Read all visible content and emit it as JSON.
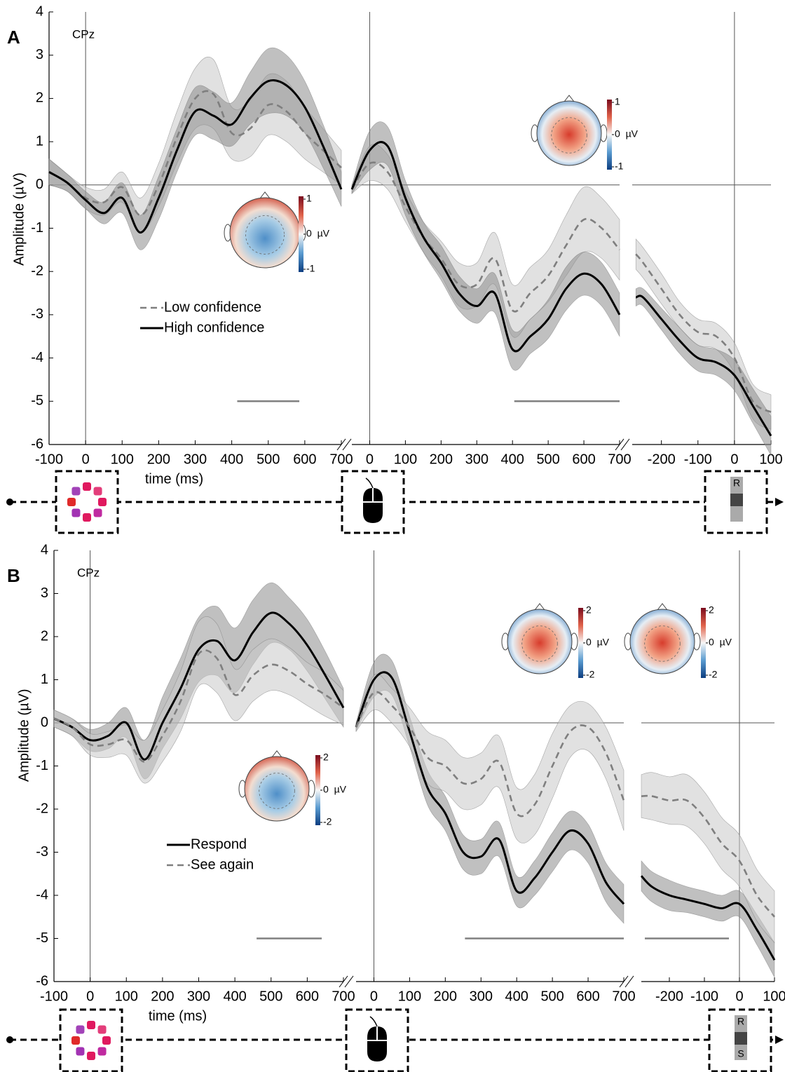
{
  "chart_data": [
    {
      "type": "line",
      "panel_label": "A",
      "channel": "CPz",
      "ylabel": "Amplitude (µV)",
      "xlabel": "time (ms)",
      "x": [
        -100,
        -50,
        0,
        50,
        100,
        150,
        200,
        250,
        300,
        350,
        400,
        450,
        500,
        550,
        600,
        650,
        700
      ],
      "xlim": [
        -100,
        700
      ],
      "xticks": [
        -100,
        0,
        100,
        200,
        300,
        400,
        500,
        600,
        700
      ],
      "ylim": [
        -6,
        4
      ],
      "yticks": [
        -6,
        -5,
        -4,
        -3,
        -2,
        -1,
        0,
        1,
        2,
        3,
        4
      ],
      "series": [
        {
          "name": "Low confidence",
          "color": "#7f7f7f",
          "band_color": "#c8c8c8",
          "dashed": true,
          "values": [
            0.3,
            0.05,
            -0.3,
            -0.4,
            -0.05,
            -0.7,
            0.0,
            1.1,
            2.0,
            2.1,
            1.2,
            1.3,
            1.85,
            1.7,
            1.2,
            0.8,
            0.4
          ],
          "ci": [
            0.3,
            0.2,
            0.25,
            0.3,
            0.35,
            0.4,
            0.5,
            0.6,
            0.7,
            0.8,
            0.6,
            0.65,
            0.7,
            0.7,
            0.6,
            0.5,
            0.4
          ]
        },
        {
          "name": "High confidence",
          "color": "#000000",
          "band_color": "#8c8c8c",
          "dashed": false,
          "values": [
            0.3,
            0.05,
            -0.35,
            -0.65,
            -0.3,
            -1.1,
            -0.3,
            0.8,
            1.7,
            1.6,
            1.4,
            2.0,
            2.4,
            2.3,
            1.8,
            0.9,
            -0.1
          ],
          "ci": [
            0.3,
            0.2,
            0.2,
            0.25,
            0.35,
            0.4,
            0.5,
            0.5,
            0.55,
            0.55,
            0.5,
            0.6,
            0.75,
            0.7,
            0.6,
            0.5,
            0.4
          ]
        }
      ],
      "significance": {
        "y": -5,
        "ranges": [
          [
            415,
            585
          ]
        ]
      },
      "topomaps": [
        {
          "colorbar_ticks": [
            1,
            {
              "value": 0,
              "label": "0  µV"
            },
            -1
          ]
        }
      ]
    },
    {
      "type": "line",
      "x": [
        -50,
        0,
        50,
        100,
        150,
        200,
        250,
        300,
        350,
        400,
        450,
        500,
        550,
        600,
        650,
        700
      ],
      "xlim": [
        -50,
        700
      ],
      "xticks": [
        0,
        100,
        200,
        300,
        400,
        500,
        600,
        700
      ],
      "ylim": [
        -6,
        4
      ],
      "series": [
        {
          "color": "#7f7f7f",
          "band_color": "#c8c8c8",
          "dashed": true,
          "values": [
            -0.1,
            0.5,
            0.3,
            -0.5,
            -1.2,
            -1.7,
            -2.3,
            -2.3,
            -1.7,
            -2.9,
            -2.5,
            -2.1,
            -1.4,
            -0.8,
            -1.0,
            -1.5
          ],
          "ci": [
            0.1,
            0.4,
            0.4,
            0.35,
            0.35,
            0.4,
            0.5,
            0.5,
            0.6,
            0.6,
            0.6,
            0.6,
            0.7,
            0.75,
            0.7,
            0.7
          ]
        },
        {
          "color": "#000000",
          "band_color": "#8c8c8c",
          "dashed": false,
          "values": [
            -0.1,
            0.8,
            0.9,
            -0.3,
            -1.2,
            -1.8,
            -2.5,
            -2.8,
            -2.5,
            -3.8,
            -3.5,
            -3.1,
            -2.4,
            -2.05,
            -2.3,
            -3.0
          ],
          "ci": [
            0.1,
            0.45,
            0.45,
            0.4,
            0.35,
            0.4,
            0.4,
            0.4,
            0.45,
            0.45,
            0.4,
            0.45,
            0.5,
            0.5,
            0.5,
            0.5
          ]
        }
      ],
      "significance": {
        "y": -5,
        "ranges": [
          [
            405,
            700
          ]
        ]
      },
      "topomaps": [
        {
          "colorbar_ticks": [
            1,
            {
              "value": 0,
              "label": "0  µV"
            },
            -1
          ]
        }
      ]
    },
    {
      "type": "line",
      "x": [
        -270,
        -250,
        -200,
        -150,
        -100,
        -50,
        0,
        50,
        100
      ],
      "xlim": [
        -280,
        100
      ],
      "xticks": [
        -200,
        -100,
        0,
        100
      ],
      "ylim": [
        -6,
        4
      ],
      "series": [
        {
          "color": "#7f7f7f",
          "band_color": "#c8c8c8",
          "dashed": true,
          "values": [
            -1.6,
            -1.8,
            -2.4,
            -3.0,
            -3.4,
            -3.5,
            -4.0,
            -5.0,
            -5.25
          ],
          "ci": [
            0.35,
            0.35,
            0.35,
            0.3,
            0.3,
            0.3,
            0.35,
            0.4,
            0.4
          ]
        },
        {
          "color": "#000000",
          "band_color": "#8c8c8c",
          "dashed": false,
          "values": [
            -2.6,
            -2.6,
            -3.1,
            -3.6,
            -4.0,
            -4.1,
            -4.4,
            -5.1,
            -5.8
          ],
          "ci": [
            0.2,
            0.2,
            0.25,
            0.3,
            0.3,
            0.3,
            0.35,
            0.4,
            0.45
          ]
        }
      ],
      "icon_labels": [
        "R"
      ]
    },
    {
      "type": "line",
      "panel_label": "B",
      "channel": "CPz",
      "ylabel": "Amplitude (µV)",
      "xlabel": "time (ms)",
      "x": [
        -100,
        -50,
        0,
        50,
        100,
        150,
        200,
        250,
        300,
        350,
        400,
        450,
        500,
        550,
        600,
        650,
        700
      ],
      "xlim": [
        -100,
        700
      ],
      "xticks": [
        -100,
        0,
        100,
        200,
        300,
        400,
        500,
        600,
        700
      ],
      "ylim": [
        -6,
        4
      ],
      "yticks": [
        -6,
        -5,
        -4,
        -3,
        -2,
        -1,
        0,
        1,
        2,
        3,
        4
      ],
      "series": [
        {
          "name": "Respond",
          "color": "#000000",
          "band_color": "#8c8c8c",
          "dashed": false,
          "values": [
            0.1,
            -0.1,
            -0.4,
            -0.3,
            0.0,
            -0.85,
            0.0,
            0.8,
            1.7,
            1.9,
            1.45,
            2.1,
            2.55,
            2.3,
            1.8,
            1.1,
            0.35
          ],
          "ci": [
            0.2,
            0.2,
            0.25,
            0.3,
            0.35,
            0.45,
            0.6,
            0.7,
            0.75,
            0.8,
            0.75,
            0.75,
            0.7,
            0.6,
            0.6,
            0.55,
            0.45
          ]
        },
        {
          "name": "See again",
          "color": "#7f7f7f",
          "band_color": "#c8c8c8",
          "dashed": true,
          "values": [
            0.1,
            -0.1,
            -0.5,
            -0.5,
            -0.4,
            -0.9,
            -0.3,
            0.5,
            1.6,
            1.5,
            0.65,
            1.1,
            1.35,
            1.2,
            0.9,
            0.65,
            0.35
          ],
          "ci": [
            0.2,
            0.2,
            0.25,
            0.3,
            0.35,
            0.5,
            0.6,
            0.7,
            0.75,
            0.8,
            0.6,
            0.6,
            0.6,
            0.55,
            0.5,
            0.5,
            0.4
          ]
        }
      ],
      "significance": {
        "y": -5,
        "ranges": [
          [
            460,
            640
          ]
        ]
      },
      "topomaps": [
        {
          "colorbar_ticks": [
            2,
            {
              "value": 0,
              "label": "0  µV"
            },
            -2
          ]
        }
      ]
    },
    {
      "type": "line",
      "x": [
        -50,
        0,
        50,
        100,
        150,
        200,
        250,
        300,
        350,
        400,
        450,
        500,
        550,
        600,
        650,
        700
      ],
      "xlim": [
        -50,
        700
      ],
      "xticks": [
        0,
        100,
        200,
        300,
        400,
        500,
        600,
        700
      ],
      "ylim": [
        -6,
        4
      ],
      "series": [
        {
          "color": "#000000",
          "band_color": "#8c8c8c",
          "dashed": false,
          "values": [
            -0.1,
            1.0,
            1.05,
            -0.2,
            -1.5,
            -2.1,
            -3.0,
            -3.1,
            -2.7,
            -3.9,
            -3.6,
            -3.0,
            -2.5,
            -2.8,
            -3.7,
            -4.2
          ],
          "ci": [
            0.1,
            0.4,
            0.4,
            0.35,
            0.4,
            0.4,
            0.4,
            0.4,
            0.4,
            0.35,
            0.4,
            0.45,
            0.45,
            0.45,
            0.45,
            0.45
          ]
        },
        {
          "color": "#7f7f7f",
          "band_color": "#c8c8c8",
          "dashed": true,
          "values": [
            -0.1,
            0.7,
            0.4,
            -0.1,
            -0.8,
            -1.0,
            -1.4,
            -1.3,
            -0.9,
            -2.1,
            -1.9,
            -1.0,
            -0.2,
            -0.1,
            -0.7,
            -1.8
          ],
          "ci": [
            0.1,
            0.4,
            0.4,
            0.45,
            0.6,
            0.6,
            0.6,
            0.6,
            0.6,
            0.6,
            0.7,
            0.75,
            0.6,
            0.55,
            0.6,
            0.7
          ]
        }
      ],
      "significance": {
        "y": -5,
        "ranges": [
          [
            255,
            700
          ]
        ]
      },
      "topomaps": [
        {
          "colorbar_ticks": [
            2,
            {
              "value": 0,
              "label": "0  µV"
            },
            -2
          ]
        }
      ]
    },
    {
      "type": "line",
      "x": [
        -280,
        -250,
        -200,
        -150,
        -100,
        -50,
        0,
        50,
        100
      ],
      "xlim": [
        -280,
        100
      ],
      "xticks": [
        -200,
        -100,
        0,
        100
      ],
      "ylim": [
        -6,
        4
      ],
      "series": [
        {
          "color": "#000000",
          "band_color": "#8c8c8c",
          "dashed": false,
          "values": [
            -3.55,
            -3.8,
            -4.0,
            -4.1,
            -4.2,
            -4.3,
            -4.2,
            -4.8,
            -5.5
          ],
          "ci": [
            0.35,
            0.35,
            0.35,
            0.3,
            0.3,
            0.3,
            0.3,
            0.35,
            0.4
          ]
        },
        {
          "color": "#7f7f7f",
          "band_color": "#c8c8c8",
          "dashed": true,
          "values": [
            -1.7,
            -1.7,
            -1.8,
            -1.8,
            -2.2,
            -2.8,
            -3.2,
            -4.0,
            -4.5
          ],
          "ci": [
            0.5,
            0.55,
            0.55,
            0.6,
            0.6,
            0.6,
            0.6,
            0.6,
            0.6
          ]
        }
      ],
      "significance": {
        "y": -5,
        "ranges": [
          [
            -270,
            -30
          ]
        ]
      },
      "topomaps": [
        {
          "colorbar_ticks": [
            2,
            {
              "value": 0,
              "label": "0  µV"
            },
            -2
          ]
        }
      ],
      "icon_labels": [
        "R",
        "S"
      ]
    }
  ]
}
